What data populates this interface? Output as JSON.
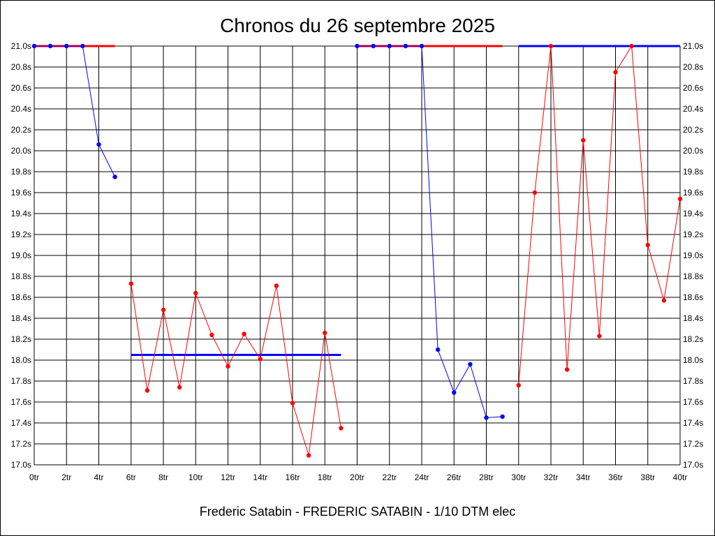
{
  "chart_data": {
    "type": "line",
    "title": "Chronos du 26 septembre 2025",
    "footer": "Frederic Satabin - FREDERIC SATABIN - 1/10 DTM elec",
    "xlabel": "",
    "ylabel": "",
    "xlim": [
      0,
      40
    ],
    "ylim": [
      17.0,
      21.0
    ],
    "grid": true,
    "x_ticks": [
      "0tr",
      "2tr",
      "4tr",
      "6tr",
      "8tr",
      "10tr",
      "12tr",
      "14tr",
      "16tr",
      "18tr",
      "20tr",
      "22tr",
      "24tr",
      "26tr",
      "28tr",
      "30tr",
      "32tr",
      "34tr",
      "36tr",
      "38tr",
      "40tr"
    ],
    "y_ticks": [
      "17.0s",
      "17.2s",
      "17.4s",
      "17.6s",
      "17.8s",
      "18.0s",
      "18.2s",
      "18.4s",
      "18.6s",
      "18.8s",
      "19.0s",
      "19.2s",
      "19.4s",
      "19.6s",
      "19.8s",
      "20.0s",
      "20.2s",
      "20.4s",
      "20.6s",
      "20.8s",
      "21.0s"
    ],
    "colors": {
      "blue": "#0000ff",
      "red": "#ff0000",
      "grid": "#000000"
    },
    "series": [
      {
        "color": "#0000ff",
        "x": [
          0,
          1,
          2,
          3,
          4,
          5
        ],
        "y": [
          21.0,
          21.0,
          21.0,
          21.0,
          20.06,
          19.75
        ]
      },
      {
        "color": "#ff0000",
        "x": [
          6,
          7,
          8,
          9,
          10,
          11,
          12,
          13,
          14,
          15,
          16,
          17,
          18,
          19
        ],
        "y": [
          18.73,
          17.71,
          18.48,
          17.74,
          18.64,
          18.24,
          17.94,
          18.25,
          18.01,
          18.71,
          17.59,
          17.09,
          18.26,
          17.35
        ]
      },
      {
        "color": "#0000ff",
        "x": [
          20,
          21,
          22,
          23,
          24,
          25,
          26,
          27,
          28,
          29
        ],
        "y": [
          21.0,
          21.0,
          21.0,
          21.0,
          21.0,
          18.1,
          17.69,
          17.96,
          17.45,
          17.46
        ]
      },
      {
        "color": "#ff0000",
        "x": [
          30,
          31,
          32,
          33,
          34,
          35,
          36,
          37,
          38,
          39,
          40
        ],
        "y": [
          17.76,
          19.6,
          21.0,
          17.91,
          20.1,
          18.23,
          20.75,
          21.0,
          19.1,
          18.57,
          19.54
        ]
      }
    ],
    "reference_lines": [
      {
        "color": "#ff0000",
        "x": [
          0,
          5
        ],
        "y": 21.0
      },
      {
        "color": "#0000ff",
        "x": [
          6,
          19
        ],
        "y": 18.05
      },
      {
        "color": "#ff0000",
        "x": [
          20,
          29
        ],
        "y": 21.0
      },
      {
        "color": "#0000ff",
        "x": [
          30,
          40
        ],
        "y": 21.0
      }
    ]
  }
}
